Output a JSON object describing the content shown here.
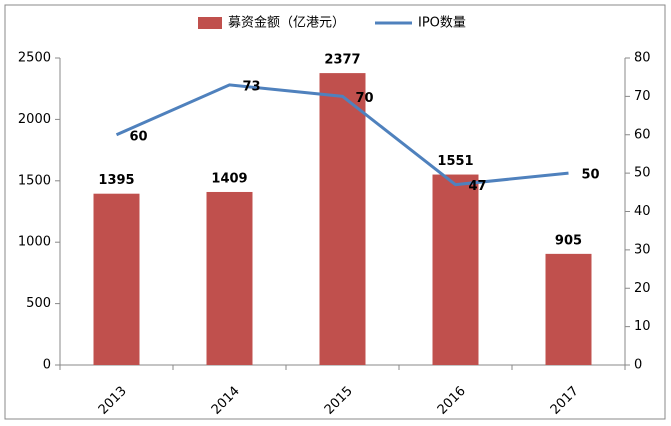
{
  "chart_data": {
    "type": "bar",
    "categories": [
      "2013",
      "2014",
      "2015",
      "2016",
      "2017"
    ],
    "series": [
      {
        "name": "募资金额（亿港元）",
        "type": "bar",
        "color": "#c0504d",
        "values": [
          1395,
          1409,
          2377,
          1551,
          905
        ]
      },
      {
        "name": "IPO数量",
        "type": "line",
        "axis": "y2",
        "color": "#4f81bd",
        "values": [
          60,
          73,
          70,
          47,
          50
        ]
      }
    ],
    "ylim": [
      0,
      2500
    ],
    "yticks": [
      0,
      500,
      1000,
      1500,
      2000,
      2500
    ],
    "y2lim": [
      0,
      80
    ],
    "y2ticks": [
      0,
      10,
      20,
      30,
      40,
      50,
      60,
      70,
      80
    ],
    "grid": false,
    "legend": "top"
  }
}
